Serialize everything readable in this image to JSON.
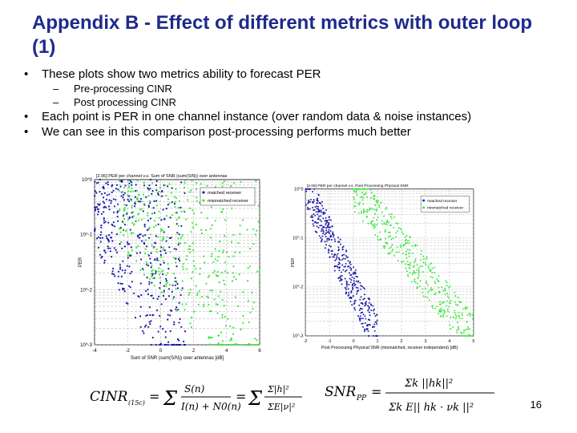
{
  "slide": {
    "title": "Appendix B - Effect of different metrics with outer loop (1)",
    "bullets": [
      {
        "text": "These plots show two metrics ability to forecast PER",
        "sub": [
          "Pre-processing CINR",
          "Post processing CINR"
        ]
      },
      {
        "text": "Each point is PER in one channel instance (over random data & noise instances)",
        "sub": []
      },
      {
        "text": "We can see in this comparison post-processing performs much better",
        "sub": []
      }
    ],
    "bullet_char": "•",
    "sub_char": "–",
    "page_number": "16"
  },
  "colors": {
    "title": "#1f2a8c",
    "matched": "#1a1aa8",
    "mismatched": "#39e639"
  },
  "chart_data": [
    {
      "type": "scatter",
      "title": "[2.06] PER per channel v.s. Sum of SNR (sum(S/N)) over antennas",
      "xlabel": "Sum of SNR (sum(S/N)) over antennas [dB]",
      "ylabel": "PER",
      "xlim": [
        -4,
        6
      ],
      "x_ticks": [
        "-4",
        "-2",
        "0",
        "2",
        "4",
        "6"
      ],
      "y_ticks": [
        "10^0",
        "10^-1",
        "10^-2",
        "10^-3"
      ],
      "yscale": "log",
      "grid": true,
      "legend_position": "top-right",
      "series": [
        {
          "name": "matched receiver",
          "color": "#1a1aa8",
          "x_range": [
            -4,
            1.5
          ]
        },
        {
          "name": "mismatched receiver",
          "color": "#39e639",
          "x_range": [
            -2.5,
            6
          ]
        }
      ]
    },
    {
      "type": "scatter",
      "title": "[2.06] PER per channel v.s. Post Processing Physical SNR",
      "xlabel": "Post Processing Physical SNR (mismatched, receiver independent) [dB]",
      "ylabel": "PER",
      "xlim": [
        -2,
        5
      ],
      "x_ticks": [
        "-2",
        "-1",
        "0",
        "1",
        "2",
        "3",
        "4",
        "5"
      ],
      "y_ticks": [
        "10^0",
        "10^-1",
        "10^-2",
        "10^-3"
      ],
      "yscale": "log",
      "grid": true,
      "legend_position": "top-right",
      "series": [
        {
          "name": "matched receiver",
          "color": "#1a1aa8",
          "x_range": [
            -2,
            1
          ]
        },
        {
          "name": "mismatched receiver",
          "color": "#39e639",
          "x_range": [
            0,
            5
          ]
        }
      ]
    }
  ],
  "formulas": {
    "cinr_lhs": "CINR",
    "cinr_sub": "(15c)",
    "cinr_num": "S(n)",
    "cinr_den": "I(n) + N0(n)",
    "snr_lhs": "SNR",
    "snr_sub": "PP",
    "snr_num": "Σk ||hk||²",
    "snr_den": "Σk E|| hk · νk ||²"
  }
}
